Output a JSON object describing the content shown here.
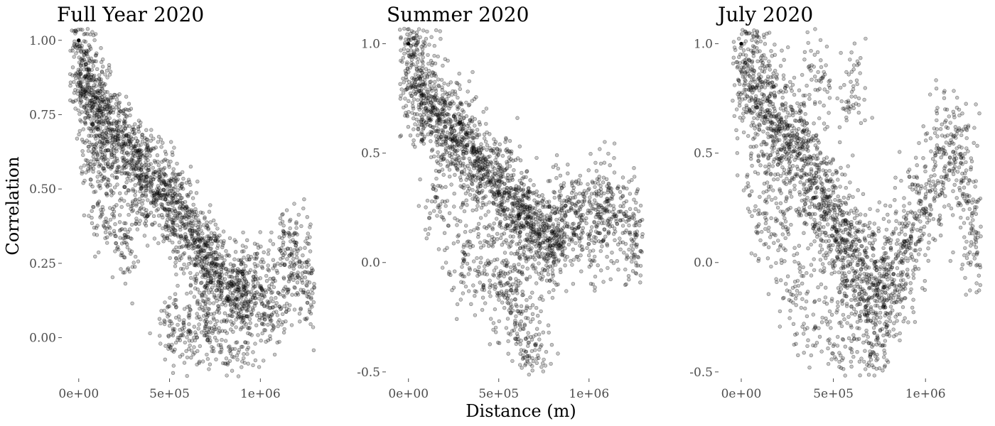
{
  "figure": {
    "shared_ylabel": "Correlation",
    "shared_xlabel": "Distance (m)"
  },
  "chart_data": [
    {
      "type": "scatter",
      "title": "Full Year 2020",
      "xlabel": "Distance (m)",
      "ylabel": "Correlation",
      "xlim": [
        -50000,
        1300000
      ],
      "ylim": [
        -0.13,
        1.04
      ],
      "xticks": [
        0,
        500000,
        1000000
      ],
      "xtick_labels": [
        "0e+00",
        "5e+05",
        "1e+06"
      ],
      "yticks": [
        0.0,
        0.25,
        0.5,
        0.75,
        1.0
      ],
      "ytick_labels": [
        "0.00",
        "0.25",
        "0.50",
        "0.75",
        "1.00"
      ],
      "grid": false,
      "marker_color": "#000000",
      "points": [
        [
          0,
          1.0
        ],
        [
          20000,
          0.86
        ],
        [
          40000,
          0.82
        ],
        [
          60000,
          0.84
        ],
        [
          80000,
          0.78
        ],
        [
          100000,
          0.74
        ],
        [
          130000,
          0.77
        ],
        [
          160000,
          0.7
        ],
        [
          190000,
          0.72
        ],
        [
          220000,
          0.65
        ],
        [
          250000,
          0.62
        ],
        [
          280000,
          0.66
        ],
        [
          310000,
          0.58
        ],
        [
          340000,
          0.6
        ],
        [
          370000,
          0.55
        ],
        [
          400000,
          0.52
        ],
        [
          430000,
          0.5
        ],
        [
          460000,
          0.48
        ],
        [
          490000,
          0.45
        ],
        [
          520000,
          0.47
        ],
        [
          550000,
          0.42
        ],
        [
          580000,
          0.38
        ],
        [
          610000,
          0.36
        ],
        [
          640000,
          0.33
        ],
        [
          670000,
          0.3
        ],
        [
          700000,
          0.27
        ],
        [
          730000,
          0.24
        ],
        [
          760000,
          0.22
        ],
        [
          790000,
          0.2
        ],
        [
          820000,
          0.17
        ],
        [
          850000,
          0.15
        ],
        [
          880000,
          0.13
        ],
        [
          910000,
          0.18
        ],
        [
          950000,
          0.12
        ],
        [
          1000000,
          0.2
        ],
        [
          1050000,
          0.1
        ],
        [
          1100000,
          0.15
        ],
        [
          1150000,
          0.3
        ],
        [
          1200000,
          0.25
        ],
        [
          1250000,
          0.22
        ],
        [
          1280000,
          0.13
        ],
        [
          900000,
          -0.08
        ],
        [
          600000,
          0.02
        ],
        [
          500000,
          0.04
        ],
        [
          150000,
          0.4
        ],
        [
          250000,
          0.32
        ],
        [
          350000,
          0.45
        ],
        [
          120000,
          0.55
        ],
        [
          80000,
          0.62
        ],
        [
          40000,
          0.92
        ],
        [
          700000,
          0.06
        ],
        [
          760000,
          -0.01
        ]
      ]
    },
    {
      "type": "scatter",
      "title": "Summer 2020",
      "xlabel": "Distance (m)",
      "ylabel": "",
      "xlim": [
        -50000,
        1300000
      ],
      "ylim": [
        -0.52,
        1.07
      ],
      "xticks": [
        0,
        500000,
        1000000
      ],
      "xtick_labels": [
        "0e+00",
        "5e+05",
        "1e+06"
      ],
      "yticks": [
        -0.5,
        0.0,
        0.5,
        1.0
      ],
      "ytick_labels": [
        "-0.5",
        "0.0",
        "0.5",
        "1.0"
      ],
      "grid": false,
      "marker_color": "#000000",
      "points": [
        [
          0,
          1.0
        ],
        [
          20000,
          0.82
        ],
        [
          50000,
          0.78
        ],
        [
          80000,
          0.74
        ],
        [
          110000,
          0.7
        ],
        [
          140000,
          0.72
        ],
        [
          170000,
          0.66
        ],
        [
          200000,
          0.62
        ],
        [
          230000,
          0.64
        ],
        [
          260000,
          0.58
        ],
        [
          290000,
          0.55
        ],
        [
          320000,
          0.5
        ],
        [
          350000,
          0.52
        ],
        [
          380000,
          0.46
        ],
        [
          410000,
          0.43
        ],
        [
          440000,
          0.4
        ],
        [
          470000,
          0.38
        ],
        [
          500000,
          0.35
        ],
        [
          530000,
          0.32
        ],
        [
          560000,
          0.3
        ],
        [
          590000,
          0.26
        ],
        [
          620000,
          0.22
        ],
        [
          650000,
          0.2
        ],
        [
          680000,
          0.17
        ],
        [
          710000,
          0.15
        ],
        [
          740000,
          0.12
        ],
        [
          770000,
          0.1
        ],
        [
          800000,
          0.08
        ],
        [
          830000,
          0.14
        ],
        [
          860000,
          0.2
        ],
        [
          900000,
          0.25
        ],
        [
          950000,
          0.18
        ],
        [
          1000000,
          0.12
        ],
        [
          1050000,
          0.22
        ],
        [
          1100000,
          0.28
        ],
        [
          1150000,
          0.2
        ],
        [
          1250000,
          0.2
        ],
        [
          1260000,
          0.08
        ],
        [
          600000,
          -0.2
        ],
        [
          650000,
          -0.35
        ],
        [
          710000,
          -0.44
        ],
        [
          480000,
          -0.1
        ],
        [
          300000,
          0.05
        ],
        [
          150000,
          0.3
        ],
        [
          400000,
          0.0
        ],
        [
          550000,
          -0.05
        ],
        [
          80000,
          0.9
        ],
        [
          40000,
          0.95
        ]
      ]
    },
    {
      "type": "scatter",
      "title": "July 2020",
      "xlabel": "Distance (m)",
      "ylabel": "",
      "xlim": [
        -50000,
        1300000
      ],
      "ylim": [
        -0.52,
        1.07
      ],
      "xticks": [
        0,
        500000,
        1000000
      ],
      "xtick_labels": [
        "0e+00",
        "5e+05",
        "1e+06"
      ],
      "yticks": [
        -0.5,
        0.0,
        0.5,
        1.0
      ],
      "ytick_labels": [
        "-0.5",
        "0.0",
        "0.5",
        "1.0"
      ],
      "grid": false,
      "marker_color": "#000000",
      "points": [
        [
          0,
          1.0
        ],
        [
          20000,
          0.85
        ],
        [
          50000,
          0.8
        ],
        [
          80000,
          0.76
        ],
        [
          110000,
          0.72
        ],
        [
          140000,
          0.74
        ],
        [
          170000,
          0.68
        ],
        [
          200000,
          0.62
        ],
        [
          230000,
          0.58
        ],
        [
          260000,
          0.54
        ],
        [
          290000,
          0.56
        ],
        [
          320000,
          0.5
        ],
        [
          350000,
          0.45
        ],
        [
          380000,
          0.4
        ],
        [
          410000,
          0.34
        ],
        [
          440000,
          0.3
        ],
        [
          470000,
          0.25
        ],
        [
          500000,
          0.2
        ],
        [
          530000,
          0.15
        ],
        [
          560000,
          0.1
        ],
        [
          590000,
          0.06
        ],
        [
          620000,
          0.02
        ],
        [
          650000,
          -0.03
        ],
        [
          680000,
          -0.08
        ],
        [
          710000,
          -0.1
        ],
        [
          740000,
          -0.14
        ],
        [
          770000,
          -0.2
        ],
        [
          800000,
          -0.15
        ],
        [
          830000,
          -0.08
        ],
        [
          860000,
          0.0
        ],
        [
          900000,
          0.1
        ],
        [
          950000,
          0.2
        ],
        [
          1000000,
          0.3
        ],
        [
          1050000,
          0.35
        ],
        [
          1100000,
          0.5
        ],
        [
          1150000,
          0.58
        ],
        [
          1200000,
          0.45
        ],
        [
          1250000,
          0.15
        ],
        [
          1300000,
          0.12
        ],
        [
          700000,
          -0.42
        ],
        [
          550000,
          -0.35
        ],
        [
          420000,
          -0.3
        ],
        [
          300000,
          -0.15
        ],
        [
          200000,
          0.1
        ],
        [
          100000,
          0.3
        ],
        [
          60000,
          0.92
        ],
        [
          400000,
          0.85
        ],
        [
          600000,
          0.78
        ]
      ]
    }
  ]
}
